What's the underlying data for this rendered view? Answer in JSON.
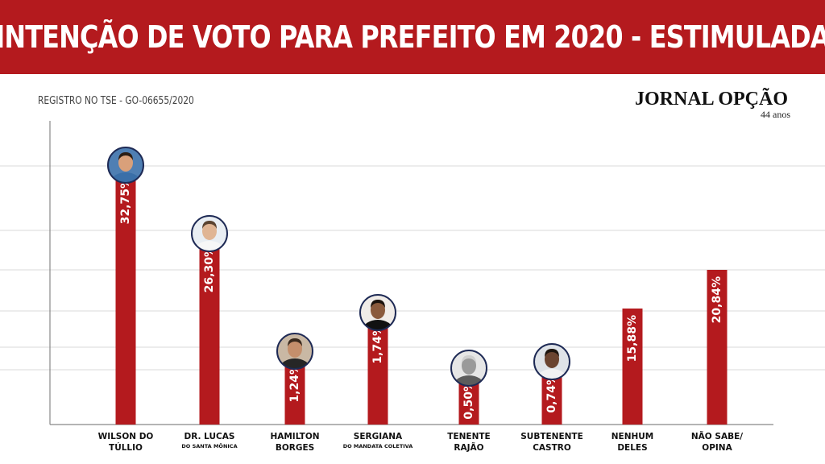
{
  "header": {
    "title": "INTENÇÃO DE VOTO PARA PREFEITO EM 2020 - ESTIMULADA",
    "registro": "REGISTRO NO TSE - GO-06655/2020"
  },
  "logo": {
    "name": "JORNAL OPÇÃO",
    "tagline": "44 anos"
  },
  "colors": {
    "bar": "#b41a1e",
    "banner": "#b41a1e",
    "grid": "#d9d9d9"
  },
  "chart_data": {
    "type": "bar",
    "categories": [
      {
        "line1": "WILSON DO",
        "line2": "TÚLLIO",
        "sub": "",
        "photo": "avatar-wilson"
      },
      {
        "line1": "DR. LUCAS",
        "line2": "",
        "sub": "DO SANTA MÔNICA",
        "photo": "avatar-lucas"
      },
      {
        "line1": "HAMILTON",
        "line2": "BORGES",
        "sub": "",
        "photo": "avatar-hamilton"
      },
      {
        "line1": "SERGIANA",
        "line2": "",
        "sub": "DO MANDATA COLETIVA",
        "photo": "avatar-sergiana"
      },
      {
        "line1": "TENENTE",
        "line2": "RAJÃO",
        "sub": "",
        "photo": "avatar-rajao"
      },
      {
        "line1": "SUBTENENTE",
        "line2": "CASTRO",
        "sub": "",
        "photo": "avatar-castro"
      },
      {
        "line1": "NENHUM",
        "line2": "DELES",
        "sub": "",
        "photo": ""
      },
      {
        "line1": "NÃO SABE/",
        "line2": "OPINA",
        "sub": "",
        "photo": ""
      }
    ],
    "values": [
      32.75,
      26.3,
      1.24,
      1.74,
      0.5,
      0.74,
      15.88,
      20.84
    ],
    "labels": [
      "32,75%",
      "26,30%",
      "1,24%",
      "1,74%",
      "0,50%",
      "0,74%",
      "15,88%",
      "20,84%"
    ],
    "xlabel": "",
    "ylabel": "",
    "grid": true
  }
}
